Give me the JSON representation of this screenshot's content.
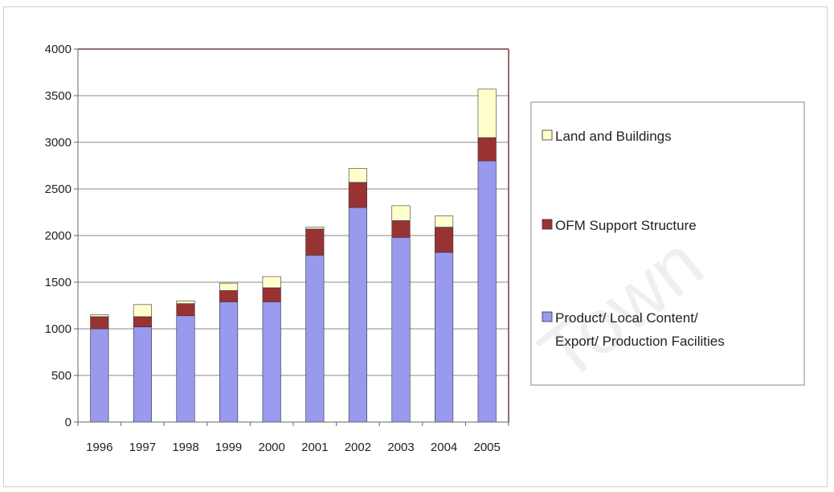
{
  "chart_data": {
    "type": "bar",
    "stacked": true,
    "categories": [
      "1996",
      "1997",
      "1998",
      "1999",
      "2000",
      "2001",
      "2002",
      "2003",
      "2004",
      "2005"
    ],
    "series": [
      {
        "name": "Product/ Local Content/ Export/ Production Facilities",
        "name_lines": [
          "Product/ Local Content/",
          "Export/ Production Facilities"
        ],
        "color": "#9999ee",
        "values": [
          1000,
          1020,
          1140,
          1290,
          1290,
          1790,
          2300,
          1980,
          1820,
          2800
        ]
      },
      {
        "name": "OFM Support Structure",
        "name_lines": [
          "OFM Support Structure"
        ],
        "color": "#993333",
        "values": [
          130,
          110,
          130,
          120,
          150,
          280,
          270,
          180,
          270,
          250
        ]
      },
      {
        "name": "Land and Buildings",
        "name_lines": [
          "Land and Buildings"
        ],
        "color": "#ffffcc",
        "values": [
          20,
          130,
          30,
          80,
          120,
          20,
          150,
          160,
          120,
          520
        ]
      }
    ],
    "yticks": [
      0,
      500,
      1000,
      1500,
      2000,
      2500,
      3000,
      3500,
      4000
    ],
    "ylim": [
      0,
      4000
    ],
    "grid": true,
    "legend_position": "right"
  },
  "watermark": {
    "text": "Town"
  }
}
